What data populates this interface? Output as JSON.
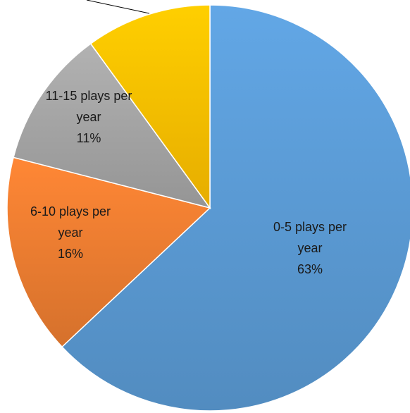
{
  "chart_data": {
    "type": "pie",
    "slices": [
      {
        "label": [
          "0-5 plays per",
          "year"
        ],
        "percent_label": "63%",
        "value": 63,
        "color": "#5b9bd5"
      },
      {
        "label": [
          "6-10 plays per",
          "year"
        ],
        "percent_label": "16%",
        "value": 16,
        "color": "#ed7d31"
      },
      {
        "label": [
          "11-15 plays per",
          "year"
        ],
        "percent_label": "11%",
        "value": 11,
        "color": "#a5a5a5"
      },
      {
        "label": [],
        "percent_label": "",
        "value": 10,
        "color": "#ffc000"
      }
    ]
  }
}
